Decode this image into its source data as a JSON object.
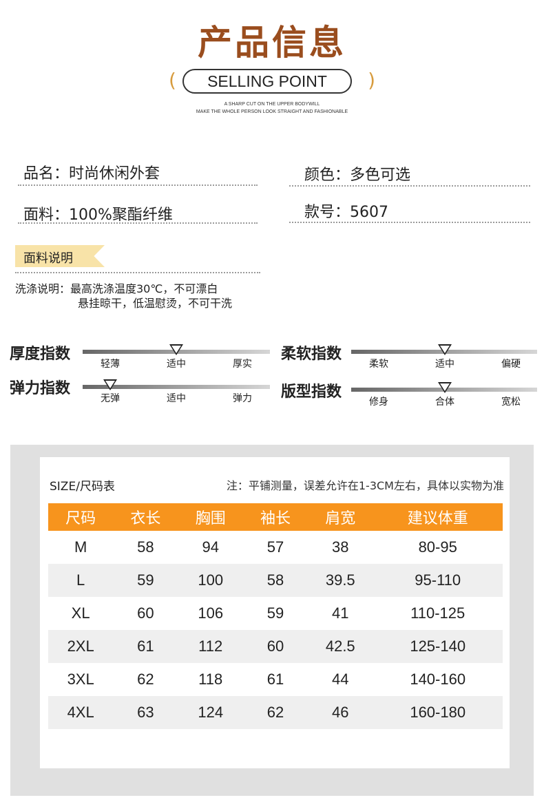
{
  "header": {
    "title": "产品信息",
    "pill": "SELLING POINT",
    "paren_left": "(",
    "paren_right": ")",
    "sub_line1": "A SHARP CUT ON THE UPPER BODYWILL",
    "sub_line2": "MAKE THE WHOLE PERSON LOOK STRAIGHT AND FASHIONABLE"
  },
  "info": {
    "name_label": "品名：",
    "name_value": "时尚休闲外套",
    "color_label": "颜色：",
    "color_value": "多色可选",
    "fabric_label": "面料：",
    "fabric_value": "100%聚酯纤维",
    "style_label": "款号：",
    "style_value": "5607"
  },
  "fabric_note": {
    "tag": "面料说明",
    "line1": "洗涤说明：最高洗涤温度30℃，不可漂白",
    "line2": "悬挂晾干，低温慰烫，不可干洗"
  },
  "scales": [
    {
      "name": "厚度指数",
      "ticks": [
        "轻薄",
        "适中",
        "厚实"
      ],
      "selected_index": 1
    },
    {
      "name": "柔软指数",
      "ticks": [
        "柔软",
        "适中",
        "偏硬"
      ],
      "selected_index": 1
    },
    {
      "name": "弹力指数",
      "ticks": [
        "无弹",
        "适中",
        "弹力"
      ],
      "selected_index": 0
    },
    {
      "name": "版型指数",
      "ticks": [
        "修身",
        "合体",
        "宽松"
      ],
      "selected_index": 1
    }
  ],
  "size_chart": {
    "title": "SIZE/尺码表",
    "note": "注：平铺测量，误差允许在1-3CM左右，具体以实物为准",
    "headers": [
      "尺码",
      "衣长",
      "胸围",
      "袖长",
      "肩宽",
      "建议体重"
    ],
    "rows": [
      [
        "M",
        "58",
        "94",
        "57",
        "38",
        "80-95"
      ],
      [
        "L",
        "59",
        "100",
        "58",
        "39.5",
        "95-110"
      ],
      [
        "XL",
        "60",
        "106",
        "59",
        "41",
        "110-125"
      ],
      [
        "2XL",
        "61",
        "112",
        "60",
        "42.5",
        "125-140"
      ],
      [
        "3XL",
        "62",
        "118",
        "61",
        "44",
        "140-160"
      ],
      [
        "4XL",
        "63",
        "124",
        "62",
        "46",
        "160-180"
      ]
    ]
  },
  "colors": {
    "title": "#9a4d1e",
    "accent_orange": "#f7941d",
    "tag_bg": "#f8e3a8",
    "paren": "#d79b3d"
  }
}
